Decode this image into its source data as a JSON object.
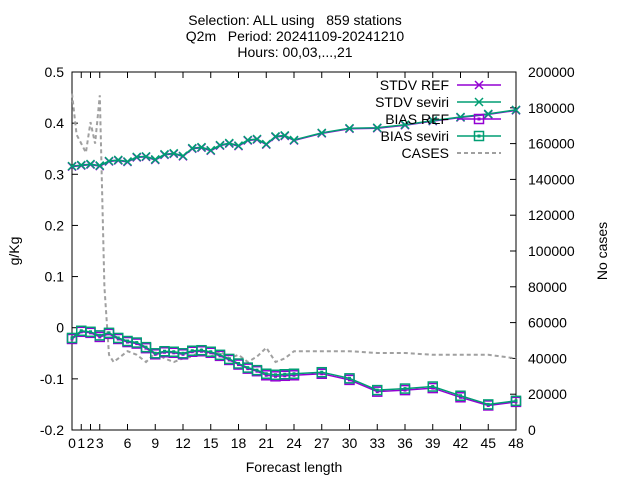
{
  "chart_data": {
    "type": "line",
    "title_lines": [
      "Selection: ALL using   859 stations",
      "Q2m   Period: 20241109-20241210",
      "Hours: 00,03,...,21"
    ],
    "xlabel": "Forecast length",
    "ylabel": "g/Kg",
    "y2label": "No cases",
    "xlim": [
      0,
      48
    ],
    "ylim": [
      -0.2,
      0.5
    ],
    "y2lim": [
      0,
      200000
    ],
    "xticks": [
      0,
      1,
      2,
      3,
      6,
      9,
      12,
      15,
      18,
      21,
      24,
      27,
      30,
      33,
      36,
      39,
      42,
      45,
      48
    ],
    "yticks": [
      -0.2,
      -0.1,
      0,
      0.1,
      0.2,
      0.3,
      0.4,
      0.5
    ],
    "y2ticks": [
      0,
      20000,
      40000,
      60000,
      80000,
      100000,
      120000,
      140000,
      160000,
      180000,
      200000
    ],
    "legend_placement": "top-right",
    "grid": false,
    "series": [
      {
        "name": "STDV REF",
        "color": "#9400d3",
        "marker": "x",
        "axis": "y",
        "x": [
          0,
          1,
          2,
          3,
          4,
          5,
          6,
          7,
          8,
          9,
          10,
          11,
          12,
          13,
          14,
          15,
          16,
          17,
          18,
          19,
          20,
          21,
          22,
          23,
          24,
          27,
          30,
          33,
          36,
          39,
          42,
          45,
          48
        ],
        "values": [
          0.315,
          0.317,
          0.319,
          0.316,
          0.325,
          0.327,
          0.324,
          0.333,
          0.334,
          0.328,
          0.338,
          0.34,
          0.335,
          0.35,
          0.352,
          0.346,
          0.356,
          0.36,
          0.355,
          0.366,
          0.368,
          0.358,
          0.373,
          0.375,
          0.366,
          0.38,
          0.389,
          0.39,
          0.396,
          0.404,
          0.411,
          0.417,
          0.425
        ]
      },
      {
        "name": "STDV seviri",
        "color": "#009e73",
        "marker": "x",
        "axis": "y",
        "x": [
          0,
          1,
          2,
          3,
          4,
          5,
          6,
          7,
          8,
          9,
          10,
          11,
          12,
          13,
          14,
          15,
          16,
          17,
          18,
          19,
          20,
          21,
          22,
          23,
          24,
          27,
          30,
          33,
          36,
          39,
          42,
          45,
          48
        ],
        "values": [
          0.316,
          0.318,
          0.32,
          0.317,
          0.326,
          0.328,
          0.325,
          0.334,
          0.335,
          0.329,
          0.339,
          0.341,
          0.336,
          0.351,
          0.353,
          0.347,
          0.357,
          0.361,
          0.356,
          0.367,
          0.369,
          0.359,
          0.374,
          0.376,
          0.367,
          0.381,
          0.39,
          0.391,
          0.397,
          0.405,
          0.412,
          0.418,
          0.426
        ]
      },
      {
        "name": "BIAS REF",
        "color": "#9400d3",
        "marker": "square",
        "axis": "y",
        "x": [
          0,
          1,
          2,
          3,
          4,
          5,
          6,
          7,
          8,
          9,
          10,
          11,
          12,
          13,
          14,
          15,
          16,
          17,
          18,
          19,
          20,
          21,
          22,
          23,
          24,
          27,
          30,
          33,
          36,
          39,
          42,
          45,
          48
        ],
        "values": [
          -0.022,
          -0.008,
          -0.01,
          -0.018,
          -0.012,
          -0.022,
          -0.028,
          -0.031,
          -0.04,
          -0.052,
          -0.048,
          -0.049,
          -0.052,
          -0.047,
          -0.046,
          -0.049,
          -0.055,
          -0.063,
          -0.072,
          -0.08,
          -0.085,
          -0.093,
          -0.095,
          -0.094,
          -0.093,
          -0.09,
          -0.102,
          -0.125,
          -0.122,
          -0.118,
          -0.136,
          -0.152,
          -0.145
        ]
      },
      {
        "name": "BIAS seviri",
        "color": "#009e73",
        "marker": "square",
        "axis": "y",
        "x": [
          0,
          1,
          2,
          3,
          4,
          5,
          6,
          7,
          8,
          9,
          10,
          11,
          12,
          13,
          14,
          15,
          16,
          17,
          18,
          19,
          20,
          21,
          22,
          23,
          24,
          27,
          30,
          33,
          36,
          39,
          42,
          45,
          48
        ],
        "values": [
          -0.02,
          -0.006,
          -0.008,
          -0.015,
          -0.01,
          -0.02,
          -0.026,
          -0.029,
          -0.038,
          -0.05,
          -0.046,
          -0.047,
          -0.05,
          -0.045,
          -0.044,
          -0.047,
          -0.053,
          -0.061,
          -0.07,
          -0.078,
          -0.083,
          -0.09,
          -0.092,
          -0.091,
          -0.09,
          -0.087,
          -0.099,
          -0.122,
          -0.119,
          -0.115,
          -0.133,
          -0.15,
          -0.143
        ]
      },
      {
        "name": "CASES",
        "color": "#a0a0a0",
        "marker": "none",
        "dashed": true,
        "axis": "y2",
        "x": [
          0,
          0.5,
          1,
          1.5,
          2,
          2.5,
          3,
          3.5,
          4,
          4.5,
          5,
          6,
          7,
          8,
          9,
          10,
          11,
          12,
          13,
          14,
          15,
          16,
          17,
          18,
          19,
          20,
          21,
          22,
          23,
          24,
          27,
          30,
          33,
          36,
          39,
          42,
          45,
          48
        ],
        "values": [
          188000,
          165000,
          160000,
          155000,
          172000,
          160000,
          187000,
          80000,
          42000,
          38000,
          40000,
          44000,
          42000,
          38000,
          43000,
          40000,
          38000,
          40000,
          41000,
          45000,
          41000,
          44000,
          40000,
          42000,
          38000,
          41000,
          46000,
          38000,
          40000,
          44000,
          44000,
          44000,
          43000,
          43000,
          42000,
          42000,
          42000,
          40000
        ]
      }
    ]
  }
}
